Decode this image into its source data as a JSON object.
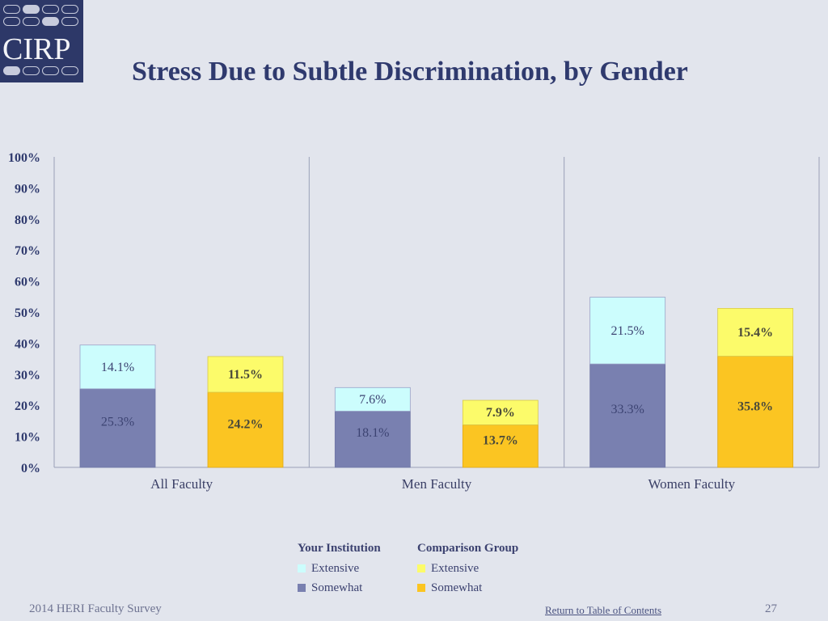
{
  "logo": {
    "text": "CIRP"
  },
  "title": "Stress Due to Subtle Discrimination, by Gender",
  "colors": {
    "inst_extensive": "#ccfdfd",
    "inst_somewhat": "#7980b0",
    "comp_extensive": "#fcfb6a",
    "comp_somewhat": "#fbc522",
    "background": "#e2e5ed",
    "title": "#2f3a6e"
  },
  "chart_data": {
    "type": "bar",
    "stacked": true,
    "categories": [
      "All Faculty",
      "Men Faculty",
      "Women Faculty"
    ],
    "groups": [
      "Your Institution",
      "Comparison Group"
    ],
    "series": [
      {
        "group": "Your Institution",
        "name": "Somewhat",
        "values": [
          25.3,
          18.1,
          33.3
        ],
        "labels": [
          "25.3%",
          "18.1%",
          "33.3%"
        ]
      },
      {
        "group": "Your Institution",
        "name": "Extensive",
        "values": [
          14.1,
          7.6,
          21.5
        ],
        "labels": [
          "14.1%",
          "7.6%",
          "21.5%"
        ]
      },
      {
        "group": "Comparison Group",
        "name": "Somewhat",
        "values": [
          24.2,
          13.7,
          35.8
        ],
        "labels": [
          "24.2%",
          "13.7%",
          "35.8%"
        ]
      },
      {
        "group": "Comparison Group",
        "name": "Extensive",
        "values": [
          11.5,
          7.9,
          15.4
        ],
        "labels": [
          "11.5%",
          "7.9%",
          "15.4%"
        ]
      }
    ],
    "yticks": [
      "0%",
      "10%",
      "20%",
      "30%",
      "40%",
      "50%",
      "60%",
      "70%",
      "80%",
      "90%",
      "100%"
    ],
    "ylim": [
      0,
      100
    ],
    "title": "Stress Due to Subtle Discrimination, by Gender",
    "xlabel": "",
    "ylabel": ""
  },
  "legend": {
    "inst_header": "Your Institution",
    "inst_extensive": "Extensive",
    "inst_somewhat": "Somewhat",
    "comp_header": "Comparison Group",
    "comp_extensive": "Extensive",
    "comp_somewhat": "Somewhat"
  },
  "footer": {
    "survey": "2014 HERI Faculty Survey",
    "link": "Return to Table of Contents",
    "page": "27"
  }
}
